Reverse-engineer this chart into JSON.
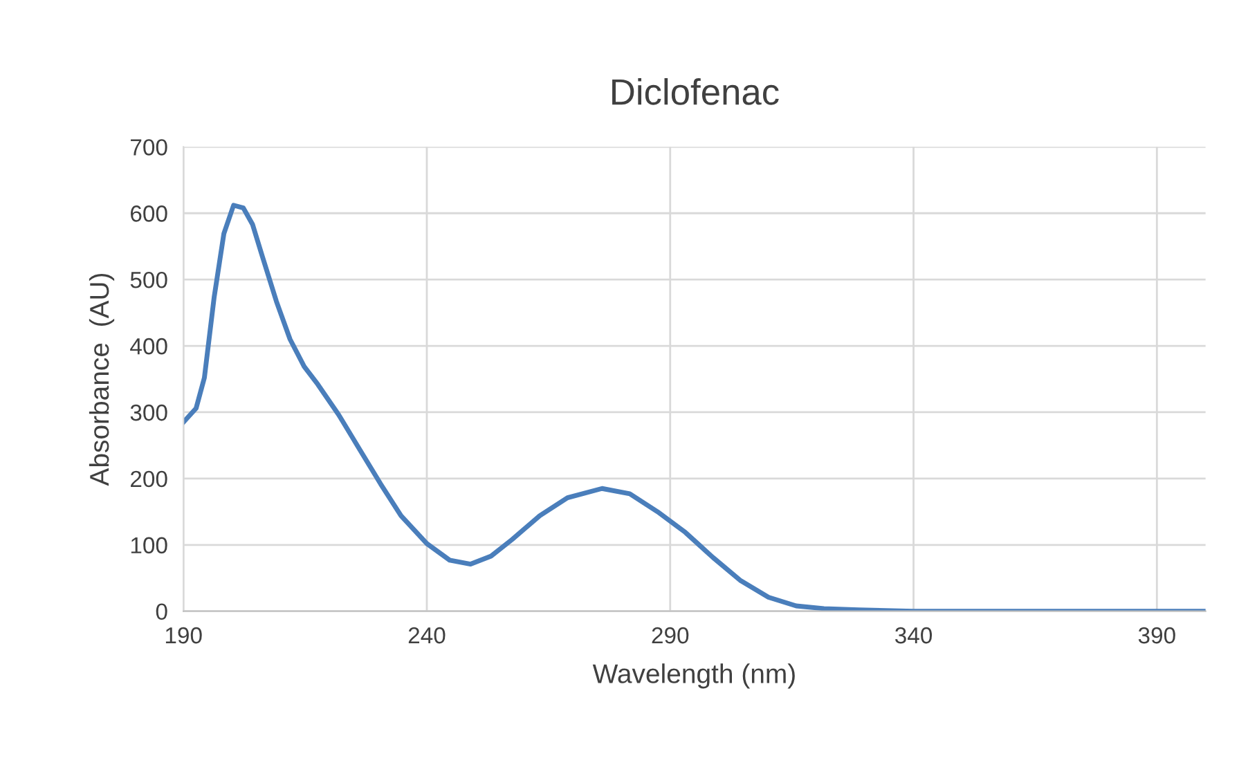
{
  "chart_data": {
    "type": "line",
    "title": "Diclofenac",
    "xlabel": "Wavelength (nm)",
    "ylabel": "Absorbance  (AU)",
    "series": [
      {
        "color": "#4a7ebb",
        "x": [
          190,
          192.6,
          194.3,
          196.3,
          198.3,
          200.3,
          202.3,
          204.2,
          206.2,
          209.1,
          211.9,
          214.8,
          217.6,
          221.9,
          226.2,
          230.5,
          234.7,
          240,
          244.7,
          249,
          253.2,
          257.5,
          263.2,
          268.9,
          276,
          281.7,
          287.4,
          293.1,
          298.8,
          304.5,
          310.2,
          315.9,
          321.6,
          328.7,
          340,
          400
        ],
        "values": [
          285,
          306,
          352,
          473,
          569,
          612,
          608,
          583,
          535,
          467,
          410,
          369,
          342,
          296,
          244,
          192,
          144,
          102,
          77,
          71,
          83,
          108,
          144,
          171,
          185,
          177,
          150,
          119,
          81,
          46,
          21,
          8,
          4,
          2,
          0,
          0
        ]
      }
    ],
    "xlim": [
      190,
      400
    ],
    "xticks": [
      190,
      240,
      290,
      340,
      390
    ],
    "ylim": [
      0,
      700
    ],
    "yticks": [
      0,
      100,
      200,
      300,
      400,
      500,
      600,
      700
    ],
    "grid": true,
    "legend": false,
    "marker": "none",
    "line_style": "solid"
  }
}
